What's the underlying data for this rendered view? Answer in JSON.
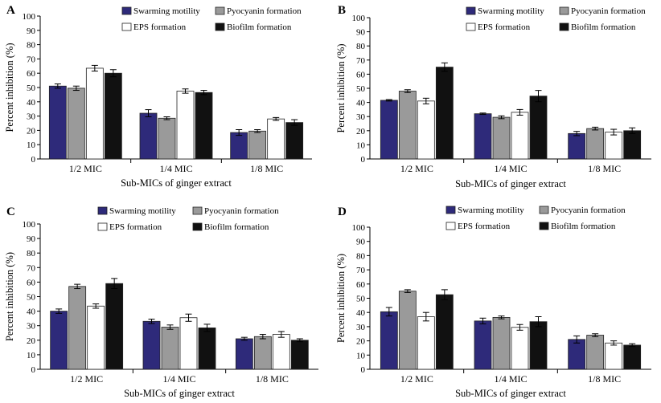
{
  "chart_data": [
    {
      "panel": "A",
      "type": "bar",
      "ylabel": "Percent inhibition (%)",
      "xlabel": "Sub-MICs of ginger extract",
      "ylim": [
        0,
        100
      ],
      "yticks": [
        0,
        10,
        20,
        30,
        40,
        50,
        60,
        70,
        80,
        90,
        100
      ],
      "categories": [
        "1/2 MIC",
        "1/4 MIC",
        "1/8 MIC"
      ],
      "legend_position": "top-right",
      "series": [
        {
          "name": "Swarming motility",
          "color": "#2e2a7a",
          "values": [
            51,
            32,
            18.5
          ],
          "errors": [
            1.5,
            2.5,
            2
          ]
        },
        {
          "name": "Pyocyanin formation",
          "color": "#9a9a9a",
          "values": [
            49.5,
            28.5,
            19.5
          ],
          "errors": [
            1.5,
            1,
            1
          ]
        },
        {
          "name": "EPS formation",
          "color": "#ffffff",
          "values": [
            63.5,
            47.5,
            28
          ],
          "errors": [
            2,
            1.5,
            1
          ]
        },
        {
          "name": "Biofilm formation",
          "color": "#111111",
          "values": [
            60,
            46.5,
            25.5
          ],
          "errors": [
            2.5,
            1.5,
            2
          ]
        }
      ]
    },
    {
      "panel": "B",
      "type": "bar",
      "ylabel": "Percent inhibition (%)",
      "xlabel": "Sub-MICs of ginger extract",
      "ylim": [
        0,
        100
      ],
      "yticks": [
        0,
        10,
        20,
        30,
        40,
        50,
        60,
        70,
        80,
        90,
        100
      ],
      "categories": [
        "1/2 MIC",
        "1/4 MIC",
        "1/8 MIC"
      ],
      "legend_position": "top-right",
      "series": [
        {
          "name": "Swarming motility",
          "color": "#2e2a7a",
          "values": [
            41.5,
            32,
            18
          ],
          "errors": [
            0.5,
            0.5,
            1.5
          ]
        },
        {
          "name": "Pyocyanin formation",
          "color": "#9a9a9a",
          "values": [
            48,
            29.5,
            21.5
          ],
          "errors": [
            1,
            1,
            1
          ]
        },
        {
          "name": "EPS formation",
          "color": "#ffffff",
          "values": [
            41,
            33,
            19
          ],
          "errors": [
            2,
            2,
            2
          ]
        },
        {
          "name": "Biofilm formation",
          "color": "#111111",
          "values": [
            65,
            44.5,
            20
          ],
          "errors": [
            3,
            4,
            2
          ]
        }
      ]
    },
    {
      "panel": "C",
      "type": "bar",
      "ylabel": "Percent inhibition (%)",
      "xlabel": "Sub-MICs of ginger extract",
      "ylim": [
        0,
        100
      ],
      "yticks": [
        0,
        10,
        20,
        30,
        40,
        50,
        60,
        70,
        80,
        90,
        100
      ],
      "categories": [
        "1/2 MIC",
        "1/4 MIC",
        "1/8 MIC"
      ],
      "legend_position": "top-right",
      "series": [
        {
          "name": "Swarming motility",
          "color": "#2e2a7a",
          "values": [
            40,
            33,
            21
          ],
          "errors": [
            1.5,
            1.5,
            1
          ]
        },
        {
          "name": "Pyocyanin formation",
          "color": "#9a9a9a",
          "values": [
            57,
            29,
            22.5
          ],
          "errors": [
            1.5,
            1.5,
            1.5
          ]
        },
        {
          "name": "EPS formation",
          "color": "#ffffff",
          "values": [
            43.5,
            35.5,
            24
          ],
          "errors": [
            1.5,
            2.5,
            2
          ]
        },
        {
          "name": "Biofilm formation",
          "color": "#111111",
          "values": [
            59,
            28.5,
            20
          ],
          "errors": [
            3.5,
            2.5,
            1
          ]
        }
      ]
    },
    {
      "panel": "D",
      "type": "bar",
      "ylabel": "Percent inhibition (%)",
      "xlabel": "Sub-MICs of ginger extract",
      "ylim": [
        0,
        100
      ],
      "yticks": [
        0,
        10,
        20,
        30,
        40,
        50,
        60,
        70,
        80,
        90,
        100
      ],
      "categories": [
        "1/2 MIC",
        "1/4 MIC",
        "1/8 MIC"
      ],
      "legend_position": "top-right",
      "series": [
        {
          "name": "Swarming motility",
          "color": "#2e2a7a",
          "values": [
            40.5,
            34,
            21
          ],
          "errors": [
            3,
            2,
            2.5
          ]
        },
        {
          "name": "Pyocyanin formation",
          "color": "#9a9a9a",
          "values": [
            55,
            36.5,
            24
          ],
          "errors": [
            1,
            1,
            1
          ]
        },
        {
          "name": "EPS formation",
          "color": "#ffffff",
          "values": [
            37,
            29.5,
            18.5
          ],
          "errors": [
            3,
            2,
            1.5
          ]
        },
        {
          "name": "Biofilm formation",
          "color": "#111111",
          "values": [
            52.5,
            33.5,
            17
          ],
          "errors": [
            3.5,
            3.5,
            1
          ]
        }
      ]
    }
  ]
}
